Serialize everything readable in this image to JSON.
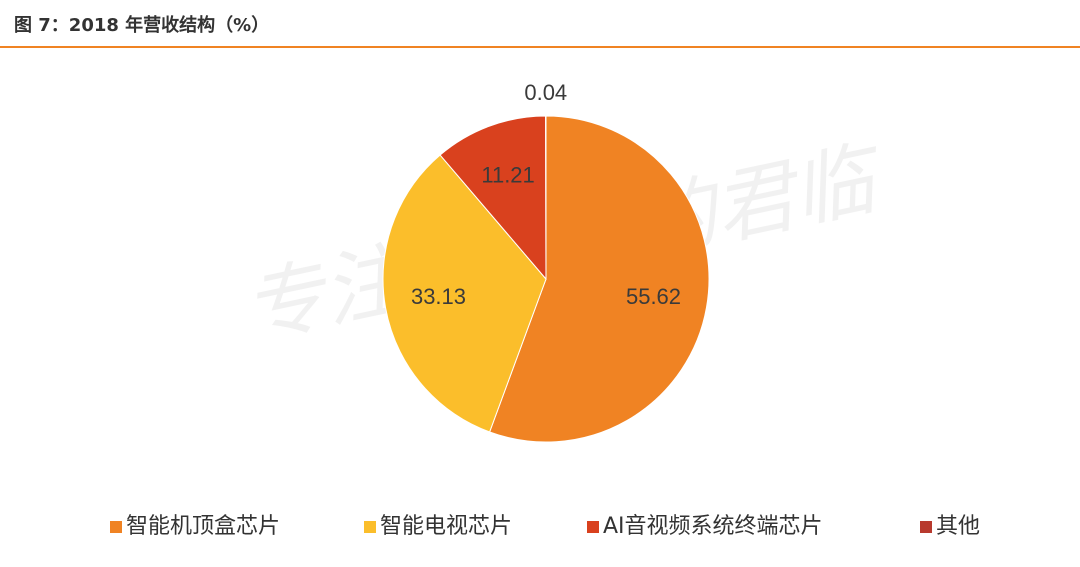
{
  "chart_data": {
    "type": "pie",
    "title": "图 7：2018 年营收结构（%）",
    "watermark": "专注成长股的君临",
    "categories": [
      "智能机顶盒芯片",
      "智能电视芯片",
      "AI音视频系统终端芯片",
      "其他"
    ],
    "values": [
      55.62,
      33.13,
      11.21,
      0.04
    ],
    "colors": [
      "#F08323",
      "#FBBE2B",
      "#D9411E",
      "#B83A2E"
    ],
    "legend": "bottom"
  }
}
